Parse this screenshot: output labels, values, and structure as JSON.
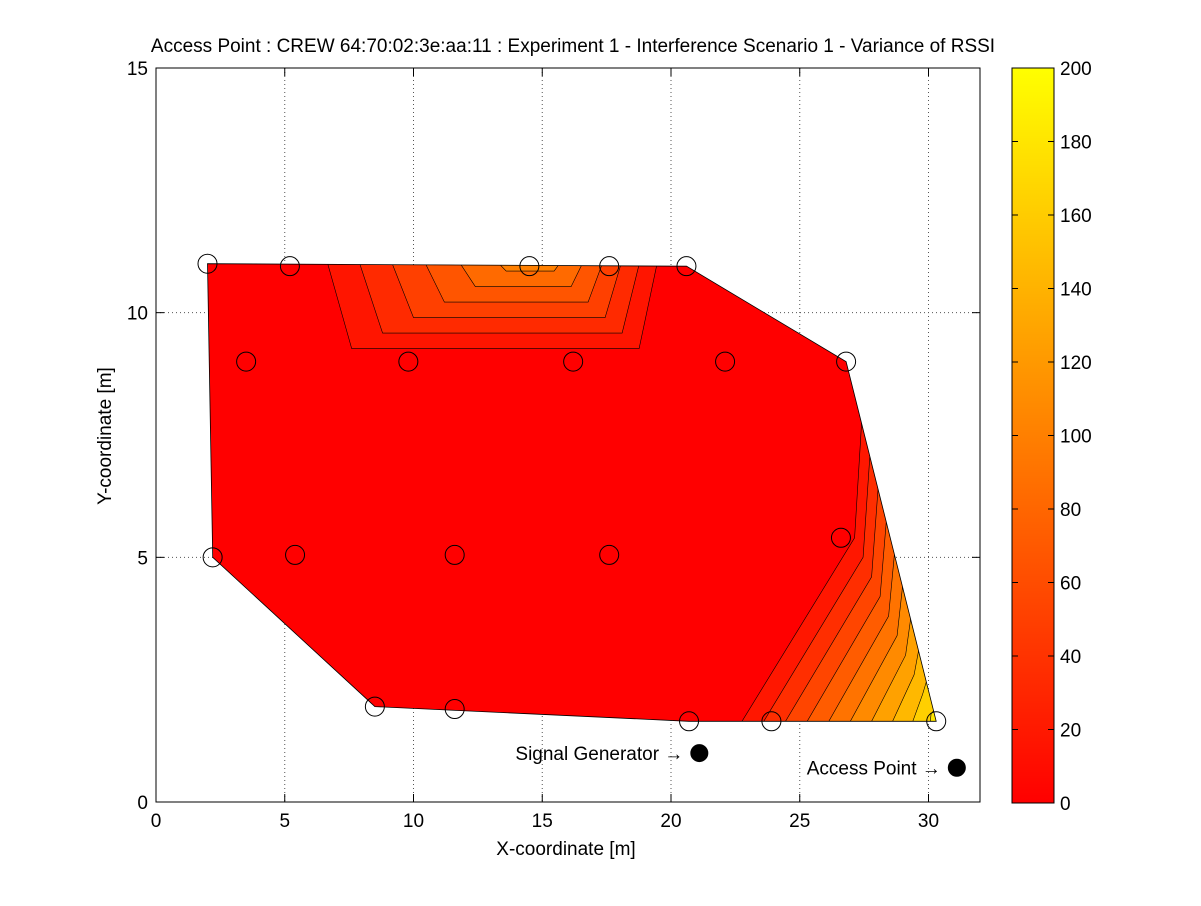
{
  "chart_data": {
    "type": "contourf",
    "title": "Access Point : CREW 64:70:02:3e:aa:11 : Experiment 1 - Interference Scenario 1 - Variance of RSSI",
    "xlabel": "X-coordinate [m]",
    "ylabel": "Y-coordinate [m]",
    "xlim": [
      0,
      32
    ],
    "ylim": [
      0,
      15
    ],
    "xticks": [
      0,
      5,
      10,
      15,
      20,
      25,
      30
    ],
    "yticks": [
      0,
      5,
      10,
      15
    ],
    "grid": true,
    "colormap": "autumn",
    "colorbar": {
      "range": [
        0,
        200
      ],
      "ticks": [
        0,
        20,
        40,
        60,
        80,
        100,
        120,
        140,
        160,
        180,
        200
      ],
      "color_low": "#ff0000",
      "color_high": "#ffff00"
    },
    "measurement_points": [
      {
        "x": 2.0,
        "y": 11.0
      },
      {
        "x": 5.2,
        "y": 10.95
      },
      {
        "x": 14.5,
        "y": 10.95
      },
      {
        "x": 17.6,
        "y": 10.95
      },
      {
        "x": 20.6,
        "y": 10.95
      },
      {
        "x": 3.5,
        "y": 9.0
      },
      {
        "x": 9.8,
        "y": 9.0
      },
      {
        "x": 16.2,
        "y": 9.0
      },
      {
        "x": 22.1,
        "y": 9.0
      },
      {
        "x": 26.8,
        "y": 9.0
      },
      {
        "x": 2.2,
        "y": 5.0
      },
      {
        "x": 5.4,
        "y": 5.05
      },
      {
        "x": 11.6,
        "y": 5.05
      },
      {
        "x": 17.6,
        "y": 5.05
      },
      {
        "x": 26.6,
        "y": 5.4
      },
      {
        "x": 8.5,
        "y": 1.95
      },
      {
        "x": 11.6,
        "y": 1.9
      },
      {
        "x": 20.7,
        "y": 1.65
      },
      {
        "x": 23.9,
        "y": 1.65
      },
      {
        "x": 30.3,
        "y": 1.65
      }
    ],
    "sources": [
      {
        "label": "Signal Generator →",
        "x": 21.1,
        "y": 1.0
      },
      {
        "label": "Access Point →",
        "x": 31.1,
        "y": 0.7
      }
    ],
    "variance_regions": [
      {
        "level": 0,
        "area": "most of the measured area"
      },
      {
        "level": 100,
        "area": "top edge near x = 13-17, y = 11"
      },
      {
        "level": 180,
        "area": "bottom-right corner near x = 29-30, y = 1.7-3"
      }
    ]
  }
}
